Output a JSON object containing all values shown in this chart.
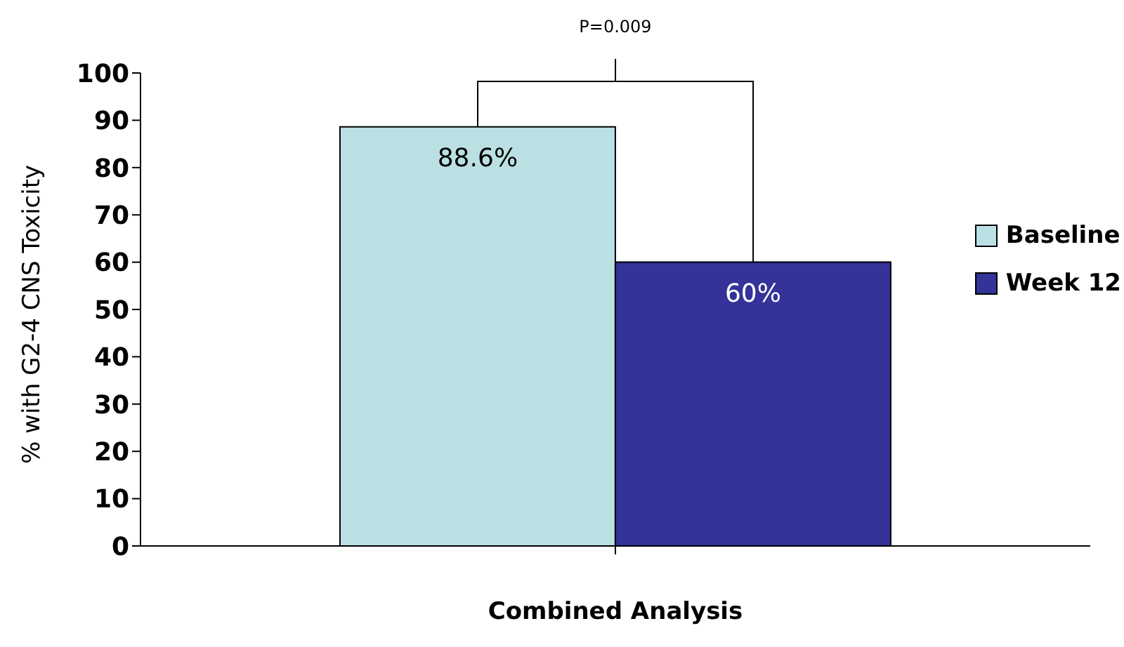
{
  "chart_data": {
    "type": "bar",
    "categories": [
      null
    ],
    "xlabel": "Combined Analysis",
    "ylabel": "% with G2-4 CNS Toxicity",
    "series": [
      {
        "name": "Baseline",
        "color": "#bbe0e3",
        "values": [
          88.6
        ],
        "value_labels": [
          "88.6%"
        ]
      },
      {
        "name": "Week 12",
        "color": "#333399",
        "values": [
          60
        ],
        "value_labels": [
          "60%"
        ]
      }
    ],
    "ylim": [
      0,
      100
    ],
    "yticks": [
      0,
      10,
      20,
      30,
      40,
      50,
      60,
      70,
      80,
      90,
      100
    ],
    "grid": false,
    "legend": "top right",
    "annotations": [
      "P=0.009"
    ]
  }
}
